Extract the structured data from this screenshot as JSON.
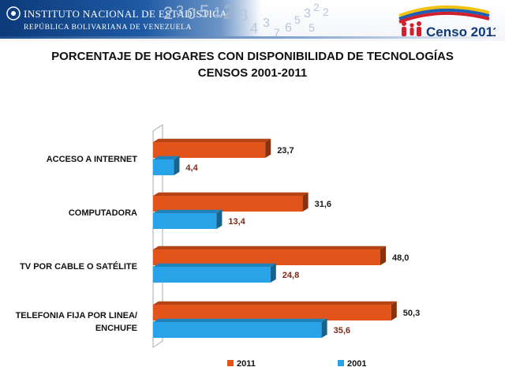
{
  "header": {
    "institute_name": "INSTITUTO NACIONAL DE ESTADÍSTICA",
    "institute_sub": "REPÚBLICA BOLIVARIANA DE VENEZUELA",
    "background_digits": [
      "2",
      "3",
      "0",
      "5",
      "1",
      "2",
      "8",
      "4",
      "3",
      "7",
      "6",
      "5",
      "3",
      "2",
      "2",
      "5"
    ],
    "censo_label": "Censo 2011",
    "brand_colors": {
      "navy": "#0d3a7a",
      "red": "#d0202e",
      "yellow": "#f3c10f",
      "blue": "#1d5fb3"
    }
  },
  "title": {
    "line1": "PORCENTAJE DE HOGARES CON DISPONIBILIDAD DE TECNOLOGÍAS",
    "line2": "CENSOS 2001-2011"
  },
  "chart_data": {
    "type": "bar",
    "orientation": "horizontal",
    "categories": [
      [
        "ACCESO A INTERNET"
      ],
      [
        "COMPUTADORA"
      ],
      [
        "TV POR CABLE O SATÉLITE"
      ],
      [
        "TELEFONIA FIJA POR LINEA/",
        "ENCHUFE"
      ]
    ],
    "series": [
      {
        "name": "2011",
        "values": [
          23.7,
          31.6,
          48.0,
          50.3
        ],
        "labels": [
          "23,7",
          "31,6",
          "48,0",
          "50,3"
        ],
        "color": "#e2541a",
        "label_color": "#1a1a1a"
      },
      {
        "name": "2001",
        "values": [
          4.4,
          13.4,
          24.8,
          35.6
        ],
        "labels": [
          "4,4",
          "13,4",
          "24,8",
          "35,6"
        ],
        "color": "#29a3e8",
        "label_color": "#7a2a1a"
      }
    ],
    "xlim": [
      0,
      60
    ],
    "grid": false,
    "legend_position": "bottom"
  }
}
